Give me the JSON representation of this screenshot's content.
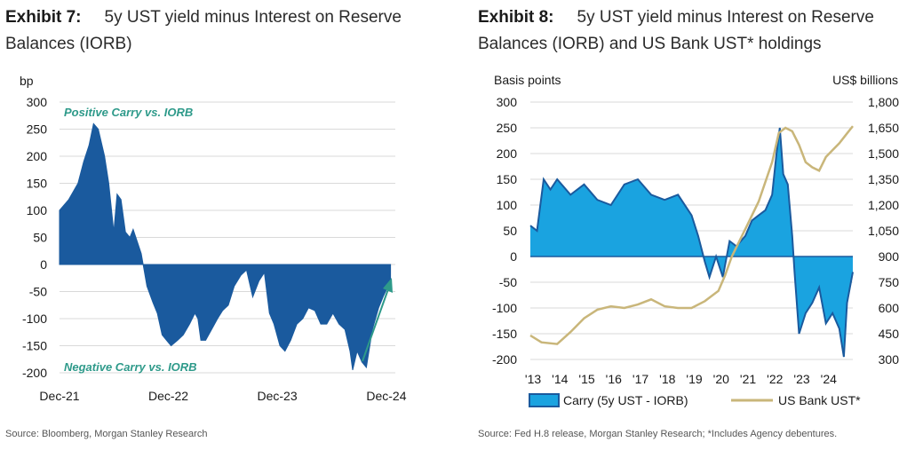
{
  "exhibit7": {
    "number": "Exhibit 7:",
    "title": "5y UST yield minus Interest on Reserve Balances (IORB)",
    "source": "Source: Bloomberg, Morgan Stanley Research"
  },
  "exhibit8": {
    "number": "Exhibit 8:",
    "title": "5y UST yield minus Interest on Reserve Balances (IORB) and US Bank UST* holdings",
    "source": "Source: Fed H.8 release, Morgan Stanley Research; *Includes Agency debentures."
  },
  "colors": {
    "dark_blue": "#1a5a9e",
    "bright_blue": "#1aa3e0",
    "gold": "#c9b67a",
    "teal": "#2e9a8a",
    "grid": "#d9d9d9"
  },
  "chart_data": [
    {
      "type": "area",
      "unit_label": "bp",
      "ylim": [
        -200,
        300
      ],
      "yticks": [
        300,
        250,
        200,
        150,
        100,
        50,
        0,
        -50,
        -100,
        -150,
        -200
      ],
      "xlim": [
        "2021-12-01",
        "2024-12-31"
      ],
      "xticks": [
        {
          "date": "2021-12-01",
          "label": "Dec-21"
        },
        {
          "date": "2022-12-01",
          "label": "Dec-22"
        },
        {
          "date": "2023-12-01",
          "label": "Dec-23"
        },
        {
          "date": "2024-12-01",
          "label": "Dec-24"
        }
      ],
      "grid": true,
      "annotations": [
        "Positive Carry vs. IORB",
        "Negative Carry vs. IORB"
      ],
      "series": [
        {
          "x": [
            "2021-12-01",
            "2022-01-01",
            "2022-02-01",
            "2022-02-20",
            "2022-03-10",
            "2022-03-25",
            "2022-04-10",
            "2022-05-01",
            "2022-05-15",
            "2022-06-01",
            "2022-06-12",
            "2022-06-25",
            "2022-07-10",
            "2022-07-25",
            "2022-08-05",
            "2022-08-20",
            "2022-09-01",
            "2022-09-20",
            "2022-10-10",
            "2022-10-25",
            "2022-11-10",
            "2022-11-25",
            "2022-12-10",
            "2023-01-01",
            "2023-01-20",
            "2023-02-10",
            "2023-02-28",
            "2023-03-10",
            "2023-03-20",
            "2023-04-05",
            "2023-04-25",
            "2023-05-15",
            "2023-06-01",
            "2023-06-20",
            "2023-07-10",
            "2023-08-01",
            "2023-08-20",
            "2023-09-10",
            "2023-10-01",
            "2023-10-19",
            "2023-11-05",
            "2023-11-20",
            "2023-12-10",
            "2023-12-27",
            "2024-01-15",
            "2024-02-05",
            "2024-02-25",
            "2024-03-15",
            "2024-04-05",
            "2024-04-25",
            "2024-05-15",
            "2024-06-05",
            "2024-06-25",
            "2024-07-15",
            "2024-08-01",
            "2024-08-10",
            "2024-08-25",
            "2024-09-10",
            "2024-09-25",
            "2024-10-15",
            "2024-11-05",
            "2024-11-20",
            "2024-12-15"
          ],
          "y": [
            100,
            120,
            150,
            190,
            220,
            260,
            250,
            200,
            150,
            60,
            130,
            120,
            60,
            50,
            65,
            40,
            20,
            -40,
            -70,
            -90,
            -130,
            -140,
            -150,
            -140,
            -130,
            -110,
            -90,
            -100,
            -140,
            -140,
            -120,
            -100,
            -85,
            -75,
            -40,
            -20,
            -10,
            -60,
            -30,
            -15,
            -90,
            -110,
            -150,
            -160,
            -140,
            -110,
            -100,
            -80,
            -85,
            -110,
            -110,
            -90,
            -110,
            -120,
            -160,
            -195,
            -160,
            -180,
            -190,
            -120,
            -80,
            -60,
            -30
          ]
        }
      ]
    },
    {
      "type": "area",
      "ylabel": "Basis points",
      "ylabel_right": "US$ billions",
      "ylim": [
        -200,
        300
      ],
      "ylim_right": [
        300,
        1800
      ],
      "yticks": [
        300,
        250,
        200,
        150,
        100,
        50,
        0,
        -50,
        -100,
        -150,
        -200
      ],
      "yticks_right": [
        "1,800",
        "1,650",
        "1,500",
        "1,350",
        "1,200",
        "1,050",
        "900",
        "750",
        "600",
        "450",
        "300"
      ],
      "xlim": [
        "2013-01-01",
        "2025-01-01"
      ],
      "xticks": [
        "'13",
        "'14",
        "'15",
        "'16",
        "'17",
        "'18",
        "'19",
        "'20",
        "'21",
        "'22",
        "'23",
        "'24"
      ],
      "grid": true,
      "series": [
        {
          "name": "Carry (5y UST - IORB)",
          "axis": "left",
          "x": [
            "2013-01-01",
            "2013-04-01",
            "2013-07-01",
            "2013-10-01",
            "2014-01-01",
            "2014-07-01",
            "2015-01-01",
            "2015-07-01",
            "2016-01-01",
            "2016-07-01",
            "2017-01-01",
            "2017-07-01",
            "2018-01-01",
            "2018-07-01",
            "2019-01-01",
            "2019-04-01",
            "2019-07-01",
            "2019-09-01",
            "2019-12-01",
            "2020-03-01",
            "2020-06-01",
            "2020-09-01",
            "2021-01-01",
            "2021-04-01",
            "2021-07-01",
            "2021-10-01",
            "2022-01-01",
            "2022-03-01",
            "2022-04-15",
            "2022-06-01",
            "2022-08-01",
            "2022-10-01",
            "2022-11-01",
            "2023-01-01",
            "2023-04-01",
            "2023-07-01",
            "2023-10-01",
            "2024-01-01",
            "2024-04-01",
            "2024-07-01",
            "2024-09-01",
            "2024-10-15",
            "2025-01-01"
          ],
          "y": [
            60,
            50,
            150,
            130,
            150,
            120,
            140,
            110,
            100,
            140,
            150,
            120,
            110,
            120,
            80,
            40,
            -10,
            -40,
            0,
            -40,
            30,
            20,
            40,
            70,
            80,
            90,
            120,
            200,
            250,
            160,
            140,
            40,
            -30,
            -150,
            -110,
            -90,
            -60,
            -130,
            -110,
            -140,
            -195,
            -90,
            -30
          ]
        },
        {
          "name": "US Bank UST*",
          "axis": "right",
          "x": [
            "2013-01-01",
            "2013-06-01",
            "2014-01-01",
            "2014-07-01",
            "2015-01-01",
            "2015-07-01",
            "2016-01-01",
            "2016-07-01",
            "2017-01-01",
            "2017-07-01",
            "2018-01-01",
            "2018-07-01",
            "2019-01-01",
            "2019-07-01",
            "2020-01-01",
            "2020-04-01",
            "2020-07-01",
            "2021-01-01",
            "2021-07-01",
            "2022-01-01",
            "2022-04-01",
            "2022-07-01",
            "2022-10-01",
            "2023-01-01",
            "2023-04-01",
            "2023-07-01",
            "2023-10-01",
            "2024-01-01",
            "2024-04-01",
            "2024-07-01",
            "2024-10-01",
            "2025-01-01"
          ],
          "y": [
            440,
            400,
            390,
            460,
            540,
            590,
            610,
            600,
            620,
            650,
            610,
            600,
            600,
            640,
            700,
            790,
            900,
            1060,
            1220,
            1450,
            1620,
            1650,
            1630,
            1550,
            1450,
            1420,
            1400,
            1480,
            1520,
            1560,
            1610,
            1660
          ]
        }
      ]
    }
  ]
}
